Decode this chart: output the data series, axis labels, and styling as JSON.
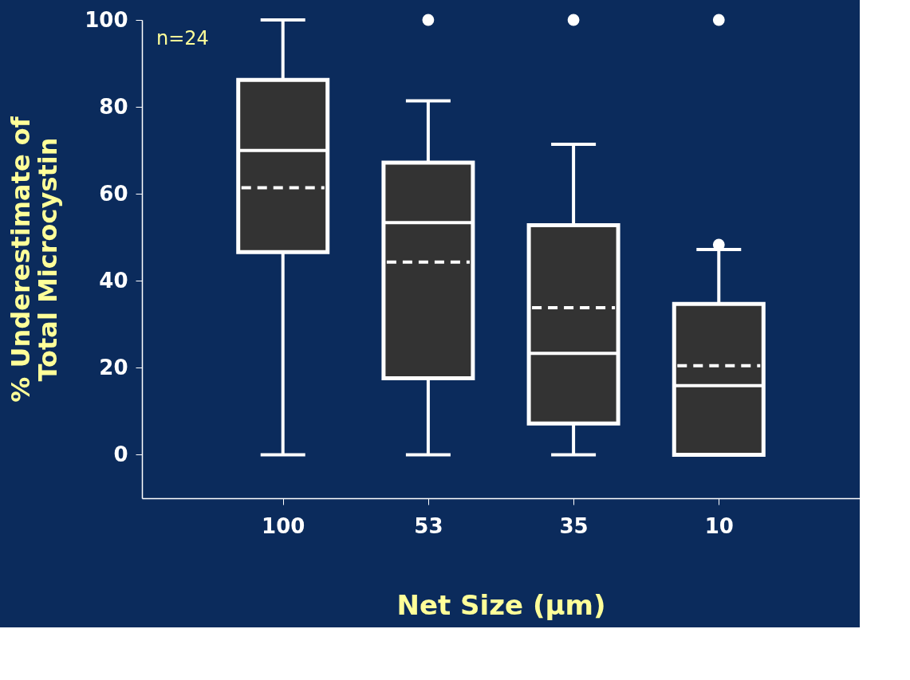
{
  "chart_data": {
    "type": "box",
    "xlabel": "Net Size (μm)",
    "ylabel": "% Underestimate of\nTotal Microcystin",
    "annotations": [
      "n=24"
    ],
    "categories": [
      "100",
      "53",
      "35",
      "10"
    ],
    "series": [
      {
        "color": "#333333",
        "boxes": [
          {
            "low": 0,
            "q1": 46.6,
            "median": 70,
            "q3": 86.2,
            "high": 100,
            "mean": 61.4
          },
          {
            "low": 0,
            "q1": 17.6,
            "median": 53.4,
            "q3": 67.2,
            "high": 81.4,
            "mean": 44.3,
            "outliers": [
              100
            ]
          },
          {
            "low": 0,
            "q1": 7.2,
            "median": 23.3,
            "q3": 52.8,
            "high": 71.4,
            "mean": 33.8,
            "outliers": [
              100
            ]
          },
          {
            "low": 0,
            "q1": 0,
            "median": 15.9,
            "q3": 34.7,
            "high": 47.2,
            "mean": 20.5,
            "outliers": [
              100,
              48.3
            ]
          }
        ]
      }
    ],
    "ylim": [
      -10,
      100
    ],
    "yticks": [
      0,
      20,
      40,
      60,
      80,
      100
    ],
    "grid": false,
    "legend": false
  }
}
